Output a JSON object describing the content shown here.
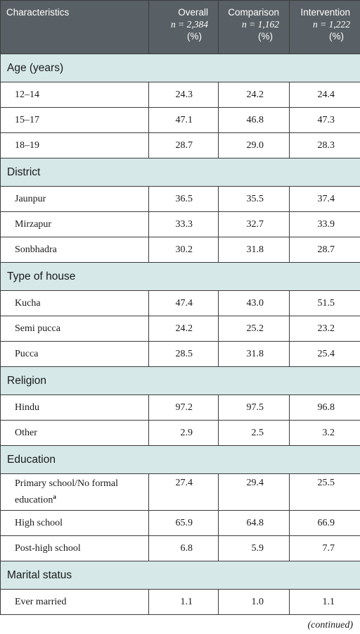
{
  "header": {
    "characteristics": "Characteristics",
    "columns": [
      {
        "title": "Overall",
        "n": "n = 2,384",
        "pct": "(%)"
      },
      {
        "title": "Comparison",
        "n": "n = 1,162",
        "pct": "(%)"
      },
      {
        "title": "Intervention",
        "n": "n = 1,222",
        "pct": "(%)"
      }
    ]
  },
  "sections": [
    {
      "title": "Age (years)",
      "rows": [
        {
          "label": "12–14",
          "values": [
            "24.3",
            "24.2",
            "24.4"
          ]
        },
        {
          "label": "15–17",
          "values": [
            "47.1",
            "46.8",
            "47.3"
          ]
        },
        {
          "label": "18–19",
          "values": [
            "28.7",
            "29.0",
            "28.3"
          ]
        }
      ]
    },
    {
      "title": "District",
      "rows": [
        {
          "label": "Jaunpur",
          "values": [
            "36.5",
            "35.5",
            "37.4"
          ]
        },
        {
          "label": "Mirzapur",
          "values": [
            "33.3",
            "32.7",
            "33.9"
          ]
        },
        {
          "label": "Sonbhadra",
          "values": [
            "30.2",
            "31.8",
            "28.7"
          ]
        }
      ]
    },
    {
      "title": "Type of house",
      "rows": [
        {
          "label": "Kucha",
          "values": [
            "47.4",
            "43.0",
            "51.5"
          ]
        },
        {
          "label": "Semi pucca",
          "values": [
            "24.2",
            "25.2",
            "23.2"
          ]
        },
        {
          "label": "Pucca",
          "values": [
            "28.5",
            "31.8",
            "25.4"
          ]
        }
      ]
    },
    {
      "title": "Religion",
      "rows": [
        {
          "label": "Hindu",
          "values": [
            "97.2",
            "97.5",
            "96.8"
          ]
        },
        {
          "label": "Other",
          "values": [
            "2.9",
            "2.5",
            "3.2"
          ]
        }
      ]
    },
    {
      "title": "Education",
      "rows": [
        {
          "label": "Primary school/No formal education",
          "sup": "a",
          "values": [
            "27.4",
            "29.4",
            "25.5"
          ],
          "tall": true
        },
        {
          "label": "High school",
          "values": [
            "65.9",
            "64.8",
            "66.9"
          ]
        },
        {
          "label": "Post-high school",
          "values": [
            "6.8",
            "5.9",
            "7.7"
          ]
        }
      ]
    },
    {
      "title": "Marital status",
      "rows": [
        {
          "label": "Ever married",
          "values": [
            "1.1",
            "1.0",
            "1.1"
          ]
        }
      ]
    }
  ],
  "footer": {
    "continued": "(continued)"
  }
}
